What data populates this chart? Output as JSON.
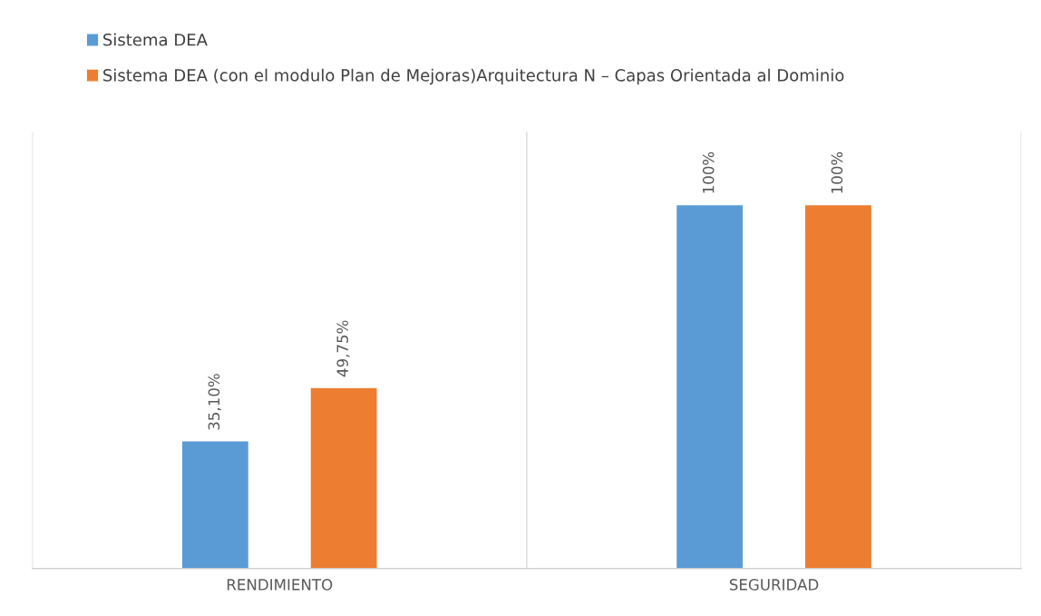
{
  "chart_data": {
    "type": "bar",
    "categories": [
      "RENDIMIENTO",
      "SEGURIDAD"
    ],
    "series": [
      {
        "name": "Sistema DEA",
        "color": "#5b9bd5",
        "values": [
          35.1,
          100
        ],
        "value_labels": [
          "35,10%",
          "100%"
        ]
      },
      {
        "name": "Sistema DEA (con el modulo Plan de Mejoras)Arquitectura N – Capas Orientada al Dominio",
        "color": "#ed7d31",
        "values": [
          49.75,
          100
        ],
        "value_labels": [
          "49,75%",
          "100%"
        ]
      }
    ],
    "ylim": [
      0,
      120
    ],
    "grid": "x",
    "legend": "top left",
    "tick_labels": "x"
  }
}
